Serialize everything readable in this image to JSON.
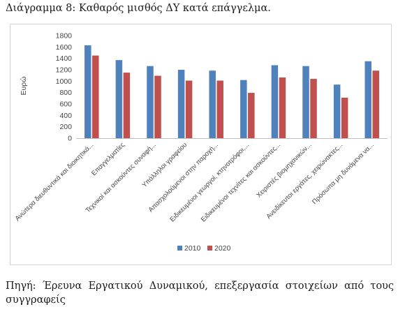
{
  "caption": "Διάγραμμα 8: Καθαρός μισθός ΔΥ κατά επάγγελμα.",
  "source_line1": "Πηγή: Έρευνα Εργατικού Δυναμικού, επεξεργασία στοιχείων από τους",
  "source_line2": "συγγραφείς",
  "colors": {
    "s2010": "#4f81bd",
    "s2020": "#c0504d",
    "axis": "#bfbfbf"
  },
  "chart_data": {
    "type": "bar",
    "title": "",
    "ylabel": "Ευρώ",
    "xlabel": "",
    "ylim": [
      0,
      1800
    ],
    "yticks": [
      0,
      200,
      400,
      600,
      800,
      1000,
      1200,
      1400,
      1600,
      1800
    ],
    "grid": false,
    "legend_position": "bottom",
    "categories": [
      "Ανώτερα διευθυντικά και διοικητικά...",
      "Επαγγελματίες",
      "Τεχνικοί και ασκούντες συναφή...",
      "Υπάλληλοι γραφείου",
      "Απασχολούμενοι στην παροχή...",
      "Ειδικευμένοι γεωργοί, κτηνοτρόφοι,...",
      "Ειδικευμένοι τεχνίτες και ασκούντες...",
      "Χειριστές βιομηχανικών...",
      "Ανειδίκευτοι εργάτες, χειρώνακτες...",
      "Πρόσωπα μη δυνάμενα να..."
    ],
    "series": [
      {
        "name": "2010",
        "values": [
          1630,
          1370,
          1265,
          1200,
          1185,
          1020,
          1280,
          1265,
          940,
          1350
        ]
      },
      {
        "name": "2020",
        "values": [
          1450,
          1150,
          1095,
          1010,
          1010,
          795,
          1065,
          1040,
          710,
          1185
        ]
      }
    ]
  }
}
